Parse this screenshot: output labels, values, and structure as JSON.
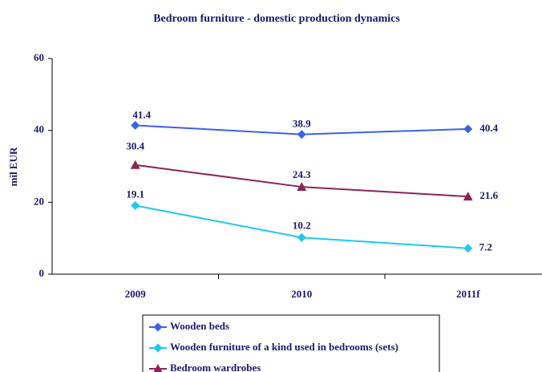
{
  "chart_data": {
    "type": "line",
    "title": "Bedroom furniture - domestic production dynamics",
    "y_label": "mil EUR",
    "categories": [
      "2009",
      "2010",
      "2011f"
    ],
    "series": [
      {
        "name": "Wooden beds",
        "color": "#3a62e8",
        "marker": "diamond",
        "values": [
          41.4,
          38.9,
          40.4
        ]
      },
      {
        "name": "Wooden furniture of a kind used in bedrooms (sets)",
        "color": "#1ec8f2",
        "marker": "diamond",
        "values": [
          19.1,
          10.2,
          7.2
        ]
      },
      {
        "name": "Bedroom wardrobes",
        "color": "#8b2456",
        "marker": "triangle",
        "values": [
          30.4,
          24.3,
          21.6
        ]
      }
    ],
    "ylim": [
      0,
      60
    ],
    "yticks": [
      0,
      20,
      40,
      60
    ],
    "legend": "bottom"
  }
}
